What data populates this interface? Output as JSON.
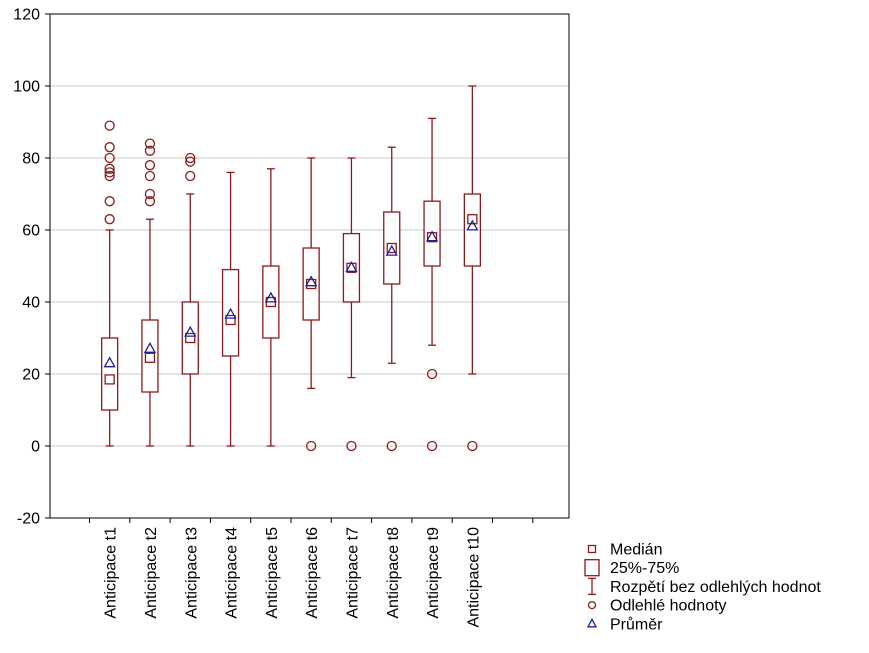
{
  "chart_data": {
    "type": "boxplot",
    "title": "",
    "xlabel": "",
    "ylabel": "",
    "ylim": [
      -20,
      120
    ],
    "yticks": [
      -20,
      0,
      20,
      40,
      60,
      80,
      100,
      120
    ],
    "grid": "horizontal",
    "legend_position": "bottom-right",
    "colors": {
      "box": "#8b1a1a",
      "mean": "#1f1f8f",
      "grid": "#c8c8c8"
    },
    "categories": [
      "Anticipace t1",
      "Anticipace t2",
      "Anticipace t3",
      "Anticipace t4",
      "Anticipace t5",
      "Anticipace t6",
      "Anticipace t7",
      "Anticipace t8",
      "Anticipace t9",
      "Anticipace t10"
    ],
    "boxes": [
      {
        "min": 0,
        "q1": 10,
        "median": 18.5,
        "q3": 30,
        "max": 60,
        "mean": 23,
        "outliers": [
          63,
          68,
          75,
          76,
          77,
          80,
          83,
          89
        ]
      },
      {
        "min": 0,
        "q1": 15,
        "median": 24.5,
        "q3": 35,
        "max": 63,
        "mean": 27,
        "outliers": [
          68,
          70,
          75,
          78,
          82,
          84
        ]
      },
      {
        "min": 0,
        "q1": 20,
        "median": 30,
        "q3": 40,
        "max": 70,
        "mean": 31.5,
        "outliers": [
          75,
          79,
          80
        ]
      },
      {
        "min": 0,
        "q1": 25,
        "median": 35,
        "q3": 49,
        "max": 76,
        "mean": 36.5,
        "outliers": []
      },
      {
        "min": 0,
        "q1": 30,
        "median": 40,
        "q3": 50,
        "max": 77,
        "mean": 41,
        "outliers": []
      },
      {
        "min": 16,
        "q1": 35,
        "median": 45,
        "q3": 55,
        "max": 80,
        "mean": 45.5,
        "outliers": [
          0
        ]
      },
      {
        "min": 19,
        "q1": 40,
        "median": 49.5,
        "q3": 59,
        "max": 80,
        "mean": 49.5,
        "outliers": [
          0
        ]
      },
      {
        "min": 23,
        "q1": 45,
        "median": 55,
        "q3": 65,
        "max": 83,
        "mean": 54,
        "outliers": [
          0
        ]
      },
      {
        "min": 28,
        "q1": 50,
        "median": 58,
        "q3": 68,
        "max": 91,
        "mean": 58,
        "outliers": [
          0,
          20
        ]
      },
      {
        "min": 20,
        "q1": 50,
        "median": 63,
        "q3": 70,
        "max": 100,
        "mean": 61,
        "outliers": [
          0
        ]
      }
    ],
    "legend": [
      {
        "key": "median",
        "label": "Medián"
      },
      {
        "key": "box",
        "label": "25%-75%"
      },
      {
        "key": "whisker",
        "label": "Rozpětí bez odlehlých hodnot"
      },
      {
        "key": "outlier",
        "label": "Odlehlé hodnoty"
      },
      {
        "key": "mean",
        "label": "Průměr"
      }
    ]
  }
}
